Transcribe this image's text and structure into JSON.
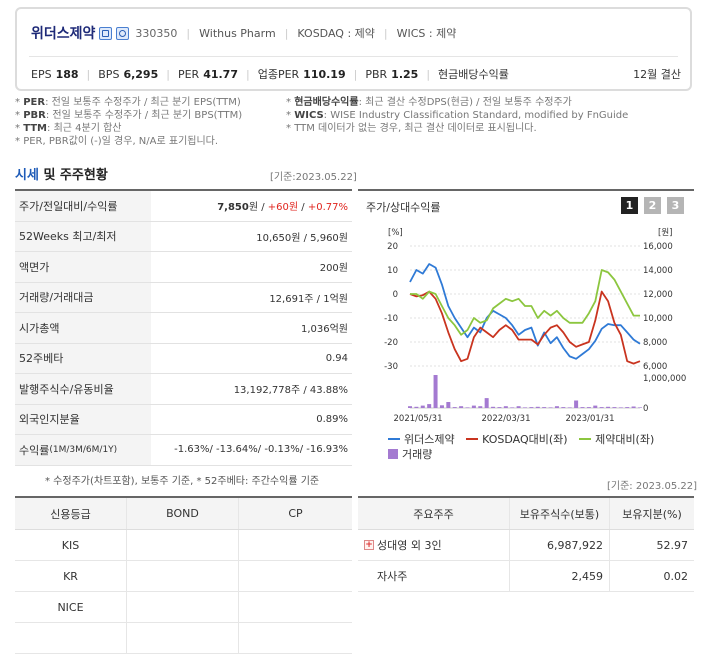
{
  "header": {
    "name": "위더스제약",
    "code": "330350",
    "eng_name": "Withus Pharm",
    "market": "KOSDAQ : 제약",
    "wics": "WICS : 제약",
    "metrics": [
      {
        "k": "EPS",
        "v": "188"
      },
      {
        "k": "BPS",
        "v": "6,295"
      },
      {
        "k": "PER",
        "v": "41.77"
      },
      {
        "k": "업종PER",
        "v": "110.19"
      },
      {
        "k": "PBR",
        "v": "1.25"
      },
      {
        "k": "현금배당수익률",
        "v": ""
      }
    ],
    "settle": "12월 결산"
  },
  "notes": {
    "left": [
      {
        "b": "PER",
        "t": ": 전일 보통주 수정주가 / 최근 분기 EPS(TTM)"
      },
      {
        "b": "PBR",
        "t": ": 전일 보통주 수정주가 / 최근 분기 BPS(TTM)"
      },
      {
        "b": "TTM",
        "t": ": 최근 4분기 합산"
      },
      {
        "b": "",
        "t": "PER, PBR값이 (-)일 경우, N/A로 표기됩니다."
      }
    ],
    "right": [
      {
        "b": "현금배당수익률",
        "t": ": 최근 결산 수정DPS(현금) / 전일 보통주 수정주가"
      },
      {
        "b": "WICS",
        "t": ": WISE Industry Classification Standard, modified by FnGuide"
      },
      {
        "b": "",
        "t": "TTM 데이터가 없는 경우, 최근 결산 데이터로 표시됩니다."
      }
    ]
  },
  "section": {
    "title_a": "시세",
    "title_b": " 및 주주현황",
    "date": "[기준:2023.05.22]"
  },
  "quote": {
    "price_label": "주가/전일대비/수익률",
    "price": "7,850",
    "price_unit": "원 / ",
    "change": "+60원",
    "slash": " / ",
    "rate": "+0.77%",
    "rows": [
      {
        "k": "52Weeks 최고/최저",
        "v": "10,650원 / 5,960원"
      },
      {
        "k": "액면가",
        "v": "200원"
      },
      {
        "k": "거래량/거래대금",
        "v": "12,691주 / 1억원"
      },
      {
        "k": "시가총액",
        "v": "1,036억원"
      },
      {
        "k": "52주베타",
        "v": "0.94"
      },
      {
        "k": "발행주식수/유동비율",
        "v": "13,192,778주 / 43.88%"
      },
      {
        "k": "외국인지분율",
        "v": "0.89%"
      }
    ],
    "returns_label": "수익률",
    "returns_sub": " (1M/3M/6M/1Y)",
    "returns": "-1.63%/ -13.64%/ -0.13%/ -16.93%",
    "footnote": "* 수정주가(차트포함), 보통주 기준, * 52주베타: 주간수익률 기준"
  },
  "chart_panel": {
    "title": "주가/상대수익률",
    "tabs": [
      "1",
      "2",
      "3"
    ],
    "legend": [
      "위더스제약",
      "KOSDAQ대비(좌)",
      "제약대비(좌)",
      "거래량"
    ],
    "colors": {
      "price": "#2f7ad6",
      "kosdaq": "#c9341f",
      "pharma": "#8cc63f",
      "volume": "#a47ad1"
    }
  },
  "chart_data": {
    "type": "line",
    "x_ticks": [
      "2021/05/31",
      "2022/03/31",
      "2023/01/31"
    ],
    "left_axis": {
      "label": "[%]",
      "ticks": [
        20,
        10,
        0,
        -10,
        -20,
        -30
      ],
      "range": [
        -30,
        20
      ]
    },
    "right_axis": {
      "label": "[원]",
      "ticks": [
        "16,000",
        "14,000",
        "12,000",
        "10,000",
        "8,000",
        "6,000"
      ],
      "range": [
        6000,
        16000
      ]
    },
    "volume_axis": {
      "ticks": [
        "1,000,000",
        "0"
      ],
      "range": [
        0,
        1000000
      ]
    },
    "series": [
      {
        "name": "위더스제약",
        "axis": "right",
        "values": [
          13000,
          14000,
          13700,
          14500,
          14200,
          12800,
          11000,
          10000,
          9200,
          8400,
          9200,
          8800,
          10000,
          10600,
          10300,
          10000,
          9400,
          8600,
          9000,
          9200,
          7700,
          8800,
          7900,
          8400,
          7500,
          6800,
          6600,
          7000,
          7400,
          8100,
          9100,
          9500,
          9400,
          9400,
          8800,
          8200,
          7850
        ]
      },
      {
        "name": "KOSDAQ대비(좌)",
        "axis": "left",
        "values": [
          0,
          -1,
          -0.5,
          1,
          -2,
          -8,
          -16,
          -23,
          -28,
          -27,
          -18,
          -14,
          -16,
          -18,
          -15,
          -13,
          -15,
          -19,
          -19,
          -19,
          -21,
          -17,
          -14,
          -13,
          -16,
          -20,
          -22,
          -21,
          -20,
          -11,
          1,
          -3,
          -12,
          -17,
          -28,
          -29,
          -28
        ]
      },
      {
        "name": "제약대비(좌)",
        "axis": "left",
        "values": [
          0,
          0,
          -2,
          1,
          0,
          -5,
          -10,
          -13,
          -17,
          -15,
          -10,
          -12,
          -11,
          -6,
          -4,
          -2,
          -3,
          -2,
          -5,
          -5,
          -10,
          -7,
          -9,
          -7,
          -10,
          -12,
          -12,
          -12,
          -8,
          -3,
          10,
          9,
          6,
          1,
          -4,
          -9,
          -9
        ]
      },
      {
        "name": "거래량",
        "axis": "volume",
        "type": "bar",
        "values": [
          60000,
          40000,
          80000,
          130000,
          1100000,
          90000,
          200000,
          30000,
          60000,
          20000,
          80000,
          60000,
          330000,
          40000,
          30000,
          60000,
          20000,
          60000,
          20000,
          30000,
          40000,
          30000,
          20000,
          60000,
          30000,
          20000,
          250000,
          30000,
          30000,
          80000,
          30000,
          40000,
          30000,
          20000,
          30000,
          50000,
          20000
        ]
      }
    ]
  },
  "credit": {
    "date": "[기준: 2023.05.22]",
    "headers": [
      "신용등급",
      "BOND",
      "CP"
    ],
    "rows": [
      [
        "KIS",
        "",
        ""
      ],
      [
        "KR",
        "",
        ""
      ],
      [
        "NICE",
        "",
        ""
      ],
      [
        "",
        "",
        ""
      ]
    ]
  },
  "holders": {
    "headers": [
      "주요주주",
      "보유주식수(보통)",
      "보유지분(%)"
    ],
    "rows": [
      {
        "name": "성대영 외 3인",
        "shares": "6,987,922",
        "pct": "52.97",
        "expand": "+"
      },
      {
        "name": "자사주",
        "shares": "2,459",
        "pct": "0.02",
        "expand": ""
      }
    ]
  }
}
